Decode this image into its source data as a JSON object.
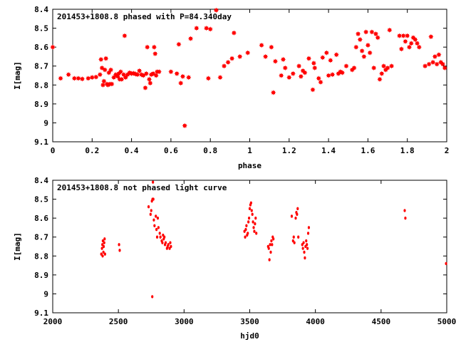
{
  "colors": {
    "points": "#ff0000",
    "axes": "#000000",
    "background": "#ffffff"
  },
  "chart_data": [
    {
      "type": "scatter",
      "title": "201453+1808.8 phased with P=84.340day",
      "xlabel": "phase",
      "ylabel": "I[mag]",
      "xlim": [
        0,
        2
      ],
      "ylim": [
        9.1,
        8.4
      ],
      "y_inverted": true,
      "grid": false,
      "legend": "none",
      "marker": "filled-star",
      "xticks": [
        0,
        0.2,
        0.4,
        0.6,
        0.8,
        1,
        1.2,
        1.4,
        1.6,
        1.8,
        2
      ],
      "xtick_labels": [
        "0",
        "0.2",
        "0.4",
        "0.6",
        "0.8",
        "1",
        "1.2",
        "1.4",
        "1.6",
        "1.8",
        "2"
      ],
      "yticks": [
        8.4,
        8.5,
        8.6,
        8.7,
        8.8,
        8.9,
        9,
        9.1
      ],
      "ytick_labels": [
        "8.4",
        "8.5",
        "8.6",
        "8.7",
        "8.8",
        "8.9",
        "9",
        "9.1"
      ],
      "points": [
        [
          0.0,
          8.6
        ],
        [
          0.04,
          8.765
        ],
        [
          0.08,
          8.745
        ],
        [
          0.11,
          8.765
        ],
        [
          0.13,
          8.765
        ],
        [
          0.15,
          8.768
        ],
        [
          0.18,
          8.765
        ],
        [
          0.2,
          8.76
        ],
        [
          0.22,
          8.758
        ],
        [
          0.24,
          8.745
        ],
        [
          0.245,
          8.665
        ],
        [
          0.25,
          8.71
        ],
        [
          0.255,
          8.8
        ],
        [
          0.26,
          8.78
        ],
        [
          0.265,
          8.72
        ],
        [
          0.27,
          8.66
        ],
        [
          0.275,
          8.795
        ],
        [
          0.28,
          8.8
        ],
        [
          0.285,
          8.735
        ],
        [
          0.29,
          8.795
        ],
        [
          0.295,
          8.72
        ],
        [
          0.3,
          8.795
        ],
        [
          0.31,
          8.76
        ],
        [
          0.32,
          8.745
        ],
        [
          0.33,
          8.755
        ],
        [
          0.335,
          8.74
        ],
        [
          0.34,
          8.77
        ],
        [
          0.345,
          8.73
        ],
        [
          0.35,
          8.77
        ],
        [
          0.36,
          8.745
        ],
        [
          0.365,
          8.54
        ],
        [
          0.37,
          8.76
        ],
        [
          0.38,
          8.745
        ],
        [
          0.39,
          8.735
        ],
        [
          0.4,
          8.74
        ],
        [
          0.41,
          8.738
        ],
        [
          0.42,
          8.742
        ],
        [
          0.43,
          8.745
        ],
        [
          0.44,
          8.725
        ],
        [
          0.45,
          8.745
        ],
        [
          0.46,
          8.75
        ],
        [
          0.47,
          8.815
        ],
        [
          0.475,
          8.74
        ],
        [
          0.48,
          8.6
        ],
        [
          0.49,
          8.77
        ],
        [
          0.495,
          8.79
        ],
        [
          0.5,
          8.745
        ],
        [
          0.51,
          8.74
        ],
        [
          0.515,
          8.6
        ],
        [
          0.52,
          8.635
        ],
        [
          0.525,
          8.75
        ],
        [
          0.53,
          8.73
        ],
        [
          0.54,
          8.73
        ],
        [
          0.6,
          8.73
        ],
        [
          0.63,
          8.74
        ],
        [
          0.64,
          8.585
        ],
        [
          0.65,
          8.79
        ],
        [
          0.66,
          8.755
        ],
        [
          0.67,
          9.015
        ],
        [
          0.69,
          8.76
        ],
        [
          0.7,
          8.555
        ],
        [
          0.73,
          8.5
        ],
        [
          0.78,
          8.5
        ],
        [
          0.79,
          8.765
        ],
        [
          0.8,
          8.505
        ],
        [
          0.83,
          8.405
        ],
        [
          0.85,
          8.76
        ],
        [
          0.87,
          8.7
        ],
        [
          0.89,
          8.68
        ],
        [
          0.91,
          8.66
        ],
        [
          0.92,
          8.525
        ],
        [
          0.95,
          8.65
        ],
        [
          0.99,
          8.63
        ],
        [
          1.06,
          8.59
        ],
        [
          1.08,
          8.65
        ],
        [
          1.11,
          8.6
        ],
        [
          1.12,
          8.84
        ],
        [
          1.13,
          8.675
        ],
        [
          1.16,
          8.75
        ],
        [
          1.17,
          8.665
        ],
        [
          1.18,
          8.71
        ],
        [
          1.2,
          8.76
        ],
        [
          1.22,
          8.74
        ],
        [
          1.25,
          8.7
        ],
        [
          1.26,
          8.755
        ],
        [
          1.27,
          8.725
        ],
        [
          1.28,
          8.735
        ],
        [
          1.3,
          8.66
        ],
        [
          1.32,
          8.825
        ],
        [
          1.325,
          8.685
        ],
        [
          1.33,
          8.71
        ],
        [
          1.35,
          8.765
        ],
        [
          1.36,
          8.785
        ],
        [
          1.37,
          8.655
        ],
        [
          1.39,
          8.63
        ],
        [
          1.4,
          8.75
        ],
        [
          1.41,
          8.67
        ],
        [
          1.42,
          8.745
        ],
        [
          1.44,
          8.64
        ],
        [
          1.45,
          8.74
        ],
        [
          1.46,
          8.73
        ],
        [
          1.47,
          8.735
        ],
        [
          1.49,
          8.7
        ],
        [
          1.52,
          8.72
        ],
        [
          1.53,
          8.71
        ],
        [
          1.54,
          8.6
        ],
        [
          1.55,
          8.53
        ],
        [
          1.56,
          8.56
        ],
        [
          1.57,
          8.62
        ],
        [
          1.58,
          8.65
        ],
        [
          1.59,
          8.52
        ],
        [
          1.6,
          8.59
        ],
        [
          1.61,
          8.63
        ],
        [
          1.62,
          8.52
        ],
        [
          1.63,
          8.71
        ],
        [
          1.64,
          8.53
        ],
        [
          1.65,
          8.55
        ],
        [
          1.66,
          8.77
        ],
        [
          1.67,
          8.74
        ],
        [
          1.68,
          8.7
        ],
        [
          1.69,
          8.72
        ],
        [
          1.7,
          8.71
        ],
        [
          1.71,
          8.51
        ],
        [
          1.72,
          8.7
        ],
        [
          1.76,
          8.54
        ],
        [
          1.77,
          8.61
        ],
        [
          1.78,
          8.54
        ],
        [
          1.79,
          8.57
        ],
        [
          1.8,
          8.54
        ],
        [
          1.81,
          8.6
        ],
        [
          1.82,
          8.58
        ],
        [
          1.83,
          8.55
        ],
        [
          1.84,
          8.56
        ],
        [
          1.85,
          8.58
        ],
        [
          1.86,
          8.6
        ],
        [
          1.89,
          8.7
        ],
        [
          1.91,
          8.69
        ],
        [
          1.92,
          8.545
        ],
        [
          1.93,
          8.68
        ],
        [
          1.94,
          8.65
        ],
        [
          1.95,
          8.69
        ],
        [
          1.96,
          8.64
        ],
        [
          1.97,
          8.68
        ],
        [
          1.98,
          8.69
        ],
        [
          1.99,
          8.71
        ]
      ]
    },
    {
      "type": "scatter",
      "title": "201453+1808.8 not phased light curve",
      "xlabel": "hjd0",
      "ylabel": "I[mag]",
      "xlim": [
        2000,
        5000
      ],
      "ylim": [
        9.1,
        8.4
      ],
      "y_inverted": true,
      "grid": false,
      "legend": "none",
      "marker": "small-dot",
      "xticks": [
        2000,
        2500,
        3000,
        3500,
        4000,
        4500,
        5000
      ],
      "xtick_labels": [
        "2000",
        "2500",
        "3000",
        "3500",
        "4000",
        "4500",
        "5000"
      ],
      "yticks": [
        8.4,
        8.5,
        8.6,
        8.7,
        8.8,
        8.9,
        9,
        9.1
      ],
      "ytick_labels": [
        "8.4",
        "8.5",
        "8.6",
        "8.7",
        "8.8",
        "8.9",
        "9",
        "9.1"
      ],
      "points": [
        [
          2370,
          8.79
        ],
        [
          2375,
          8.76
        ],
        [
          2378,
          8.74
        ],
        [
          2380,
          8.8
        ],
        [
          2382,
          8.72
        ],
        [
          2386,
          8.78
        ],
        [
          2388,
          8.75
        ],
        [
          2392,
          8.73
        ],
        [
          2395,
          8.71
        ],
        [
          2398,
          8.79
        ],
        [
          2505,
          8.74
        ],
        [
          2510,
          8.77
        ],
        [
          2730,
          8.54
        ],
        [
          2745,
          8.58
        ],
        [
          2750,
          8.56
        ],
        [
          2755,
          8.51
        ],
        [
          2758,
          9.015
        ],
        [
          2760,
          8.5
        ],
        [
          2763,
          8.41
        ],
        [
          2766,
          8.5
        ],
        [
          2770,
          8.61
        ],
        [
          2775,
          8.64
        ],
        [
          2785,
          8.59
        ],
        [
          2790,
          8.66
        ],
        [
          2795,
          8.7
        ],
        [
          2800,
          8.6
        ],
        [
          2805,
          8.65
        ],
        [
          2815,
          8.68
        ],
        [
          2820,
          8.7
        ],
        [
          2830,
          8.72
        ],
        [
          2835,
          8.73
        ],
        [
          2840,
          8.69
        ],
        [
          2845,
          8.71
        ],
        [
          2850,
          8.7
        ],
        [
          2855,
          8.74
        ],
        [
          2860,
          8.73
        ],
        [
          2870,
          8.76
        ],
        [
          2875,
          8.75
        ],
        [
          2880,
          8.74
        ],
        [
          2890,
          8.76
        ],
        [
          2895,
          8.73
        ],
        [
          2900,
          8.75
        ],
        [
          3460,
          8.67
        ],
        [
          3465,
          8.7
        ],
        [
          3470,
          8.66
        ],
        [
          3475,
          8.64
        ],
        [
          3480,
          8.69
        ],
        [
          3485,
          8.68
        ],
        [
          3490,
          8.62
        ],
        [
          3495,
          8.6
        ],
        [
          3500,
          8.55
        ],
        [
          3505,
          8.53
        ],
        [
          3510,
          8.52
        ],
        [
          3515,
          8.56
        ],
        [
          3520,
          8.58
        ],
        [
          3525,
          8.62
        ],
        [
          3530,
          8.65
        ],
        [
          3535,
          8.67
        ],
        [
          3540,
          8.63
        ],
        [
          3545,
          8.6
        ],
        [
          3550,
          8.68
        ],
        [
          3640,
          8.75
        ],
        [
          3645,
          8.76
        ],
        [
          3650,
          8.82
        ],
        [
          3655,
          8.74
        ],
        [
          3660,
          8.78
        ],
        [
          3665,
          8.72
        ],
        [
          3670,
          8.74
        ],
        [
          3675,
          8.7
        ],
        [
          3680,
          8.71
        ],
        [
          3820,
          8.59
        ],
        [
          3830,
          8.72
        ],
        [
          3835,
          8.7
        ],
        [
          3840,
          8.73
        ],
        [
          3850,
          8.6
        ],
        [
          3855,
          8.57
        ],
        [
          3860,
          8.58
        ],
        [
          3865,
          8.55
        ],
        [
          3870,
          8.7
        ],
        [
          3900,
          8.74
        ],
        [
          3905,
          8.76
        ],
        [
          3910,
          8.73
        ],
        [
          3915,
          8.78
        ],
        [
          3920,
          8.81
        ],
        [
          3925,
          8.75
        ],
        [
          3930,
          8.72
        ],
        [
          3935,
          8.74
        ],
        [
          3940,
          8.76
        ],
        [
          3945,
          8.68
        ],
        [
          3950,
          8.65
        ],
        [
          4680,
          8.56
        ],
        [
          4685,
          8.6
        ],
        [
          4995,
          8.84
        ]
      ]
    }
  ]
}
